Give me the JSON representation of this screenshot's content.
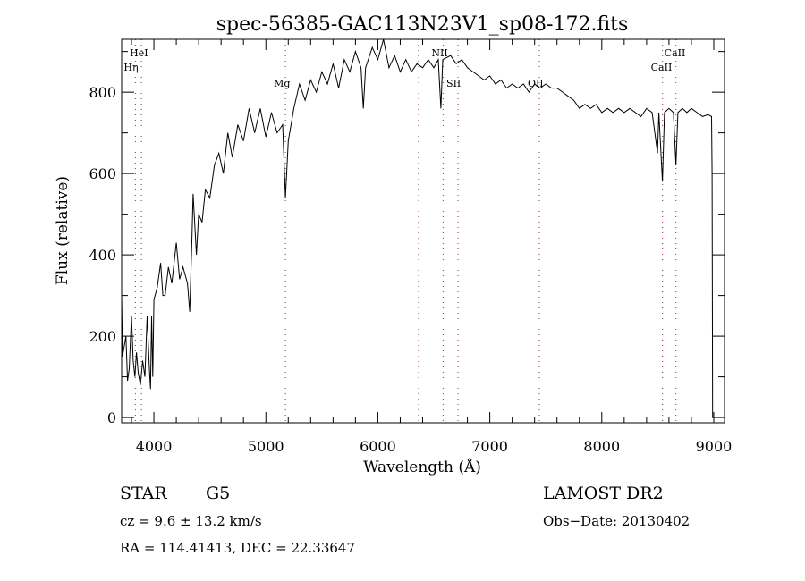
{
  "chart_data": {
    "type": "line",
    "title": "spec-56385-GAC113N23V1_sp08-172.fits",
    "xlabel": "Wavelength (Å)",
    "ylabel": "Flux (relative)",
    "xlim": [
      3712,
      9096
    ],
    "ylim": [
      -13,
      930
    ],
    "xticks": [
      4000,
      5000,
      6000,
      7000,
      8000,
      9000
    ],
    "yticks": [
      0,
      200,
      400,
      600,
      800
    ],
    "grid": false,
    "line_color": "#000000",
    "marker_color": "#a05050",
    "lines": [
      {
        "label": "Hη",
        "wavelength": 3835,
        "row": 2
      },
      {
        "label": "HeI",
        "wavelength": 3889,
        "row": 1
      },
      {
        "label": "Mg",
        "wavelength": 5175,
        "row": 3
      },
      {
        "label": "",
        "wavelength": 6364,
        "row": 2
      },
      {
        "label": "NII",
        "wavelength": 6583,
        "row": 1
      },
      {
        "label": "SII",
        "wavelength": 6716,
        "row": 3
      },
      {
        "label": "OII",
        "wavelength": 7442,
        "row": 3
      },
      {
        "label": "CaII",
        "wavelength": 8542,
        "row": 2
      },
      {
        "label": "CaII",
        "wavelength": 8662,
        "row": 1
      }
    ],
    "series": [
      {
        "name": "flux",
        "points": [
          [
            3712,
            300
          ],
          [
            3720,
            150
          ],
          [
            3750,
            200
          ],
          [
            3765,
            90
          ],
          [
            3780,
            120
          ],
          [
            3800,
            250
          ],
          [
            3815,
            140
          ],
          [
            3830,
            100
          ],
          [
            3845,
            160
          ],
          [
            3860,
            110
          ],
          [
            3880,
            80
          ],
          [
            3900,
            140
          ],
          [
            3920,
            100
          ],
          [
            3940,
            250
          ],
          [
            3960,
            120
          ],
          [
            3970,
            70
          ],
          [
            3980,
            250
          ],
          [
            3990,
            100
          ],
          [
            4000,
            290
          ],
          [
            4030,
            320
          ],
          [
            4060,
            380
          ],
          [
            4080,
            300
          ],
          [
            4100,
            300
          ],
          [
            4130,
            370
          ],
          [
            4160,
            330
          ],
          [
            4200,
            430
          ],
          [
            4230,
            340
          ],
          [
            4260,
            370
          ],
          [
            4300,
            330
          ],
          [
            4320,
            260
          ],
          [
            4340,
            440
          ],
          [
            4350,
            550
          ],
          [
            4380,
            400
          ],
          [
            4400,
            500
          ],
          [
            4430,
            480
          ],
          [
            4460,
            560
          ],
          [
            4500,
            540
          ],
          [
            4540,
            620
          ],
          [
            4580,
            650
          ],
          [
            4620,
            600
          ],
          [
            4660,
            700
          ],
          [
            4700,
            640
          ],
          [
            4750,
            720
          ],
          [
            4800,
            680
          ],
          [
            4850,
            760
          ],
          [
            4900,
            700
          ],
          [
            4950,
            760
          ],
          [
            5000,
            690
          ],
          [
            5050,
            750
          ],
          [
            5100,
            700
          ],
          [
            5150,
            720
          ],
          [
            5175,
            540
          ],
          [
            5200,
            680
          ],
          [
            5250,
            760
          ],
          [
            5300,
            820
          ],
          [
            5350,
            780
          ],
          [
            5400,
            830
          ],
          [
            5450,
            800
          ],
          [
            5500,
            850
          ],
          [
            5550,
            820
          ],
          [
            5600,
            870
          ],
          [
            5650,
            810
          ],
          [
            5700,
            880
          ],
          [
            5750,
            850
          ],
          [
            5800,
            900
          ],
          [
            5850,
            860
          ],
          [
            5870,
            760
          ],
          [
            5890,
            860
          ],
          [
            5950,
            910
          ],
          [
            6000,
            880
          ],
          [
            6050,
            930
          ],
          [
            6100,
            860
          ],
          [
            6150,
            890
          ],
          [
            6200,
            850
          ],
          [
            6250,
            880
          ],
          [
            6300,
            850
          ],
          [
            6350,
            870
          ],
          [
            6400,
            860
          ],
          [
            6450,
            880
          ],
          [
            6500,
            860
          ],
          [
            6540,
            880
          ],
          [
            6563,
            760
          ],
          [
            6580,
            880
          ],
          [
            6650,
            890
          ],
          [
            6700,
            870
          ],
          [
            6750,
            880
          ],
          [
            6800,
            860
          ],
          [
            6850,
            850
          ],
          [
            6900,
            840
          ],
          [
            6950,
            830
          ],
          [
            7000,
            840
          ],
          [
            7050,
            820
          ],
          [
            7100,
            830
          ],
          [
            7150,
            810
          ],
          [
            7200,
            820
          ],
          [
            7250,
            810
          ],
          [
            7300,
            820
          ],
          [
            7350,
            800
          ],
          [
            7400,
            820
          ],
          [
            7450,
            810
          ],
          [
            7500,
            820
          ],
          [
            7550,
            810
          ],
          [
            7600,
            810
          ],
          [
            7650,
            800
          ],
          [
            7700,
            790
          ],
          [
            7750,
            780
          ],
          [
            7800,
            760
          ],
          [
            7850,
            770
          ],
          [
            7900,
            760
          ],
          [
            7950,
            770
          ],
          [
            8000,
            750
          ],
          [
            8050,
            760
          ],
          [
            8100,
            750
          ],
          [
            8150,
            760
          ],
          [
            8200,
            750
          ],
          [
            8250,
            760
          ],
          [
            8300,
            750
          ],
          [
            8350,
            740
          ],
          [
            8400,
            760
          ],
          [
            8450,
            750
          ],
          [
            8498,
            650
          ],
          [
            8510,
            750
          ],
          [
            8542,
            580
          ],
          [
            8560,
            750
          ],
          [
            8600,
            760
          ],
          [
            8640,
            750
          ],
          [
            8662,
            620
          ],
          [
            8680,
            750
          ],
          [
            8720,
            760
          ],
          [
            8760,
            750
          ],
          [
            8800,
            760
          ],
          [
            8850,
            750
          ],
          [
            8900,
            740
          ],
          [
            8950,
            745
          ],
          [
            8980,
            740
          ],
          [
            8985,
            600
          ],
          [
            8990,
            0
          ]
        ]
      }
    ]
  },
  "info": {
    "class": "STAR",
    "subclass": "G5",
    "cz": "cz = 9.6 ± 13.2 km/s",
    "radec": "RA = 114.41413, DEC =  22.33647",
    "survey": "LAMOST DR2",
    "obs_date": "Obs−Date: 20130402"
  }
}
